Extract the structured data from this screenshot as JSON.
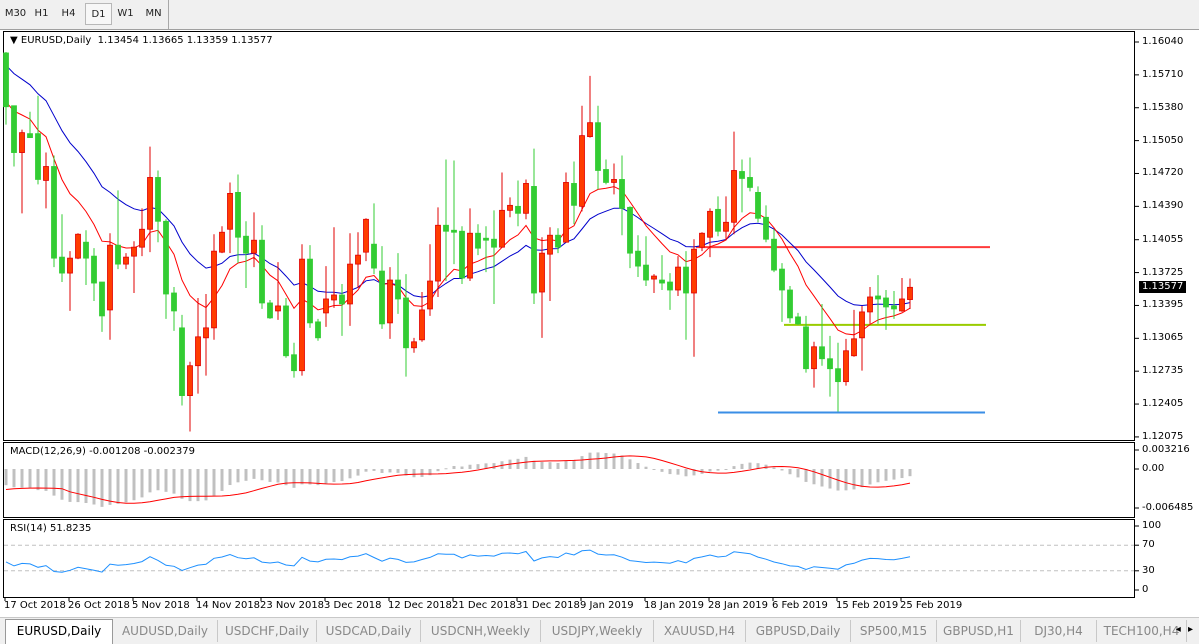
{
  "toolbar": {
    "timeframes": [
      "M30",
      "H1",
      "H4",
      "D1",
      "W1",
      "MN"
    ],
    "selected": "D1"
  },
  "chart": {
    "header_icon": "triangle-down-icon",
    "symbol": "EURUSD,Daily",
    "ohlc": "1.13454 1.13665 1.13359 1.13577",
    "current_price": "1.13577",
    "price_axis": [
      "1.16040",
      "1.15710",
      "1.15380",
      "1.15050",
      "1.14720",
      "1.14390",
      "1.14055",
      "1.13725",
      "1.13395",
      "1.13065",
      "1.12735",
      "1.12405",
      "1.12075"
    ]
  },
  "macd": {
    "label": "MACD(12,26,9) -0.001208 -0.002379",
    "axis": [
      "0.003216",
      "0.00",
      "-0.006485"
    ]
  },
  "rsi": {
    "label": "RSI(14) 51.8235",
    "axis": [
      "100",
      "70",
      "30",
      "0"
    ]
  },
  "dates": [
    "17 Oct 2018",
    "26 Oct 2018",
    "5 Nov 2018",
    "14 Nov 2018",
    "23 Nov 2018",
    "3 Dec 2018",
    "12 Dec 2018",
    "21 Dec 2018",
    "31 Dec 2018",
    "9 Jan 2019",
    "18 Jan 2019",
    "28 Jan 2019",
    "6 Feb 2019",
    "15 Feb 2019",
    "25 Feb 2019"
  ],
  "tabs": [
    "EURUSD,Daily",
    "AUDUSD,Daily",
    "USDCHF,Daily",
    "USDCAD,Daily",
    "USDCNH,Weekly",
    "USDJPY,Weekly",
    "XAUUSD,H4",
    "GBPUSD,Daily",
    "SP500,M15",
    "GBPUSD,H1",
    "DJ30,H4",
    "TECH100,H4"
  ],
  "active_tab": "EURUSD,Daily",
  "tab_scroll_arrows": "◂ ▸",
  "colors": {
    "up_candle": "#ff3c00",
    "up_border": "#e00000",
    "down_candle": "#33cc33",
    "ma_fast": "#ff0000",
    "ma_slow": "#0000cc",
    "macd_histogram": "#c0c0c0",
    "macd_signal": "#ff0000",
    "rsi_line": "#1e90ff",
    "level_lines": "#c0c0c0"
  },
  "chart_data": {
    "type": "candlestick",
    "candle_format": [
      "open",
      "high",
      "low",
      "close"
    ],
    "candles": [
      [
        1.1593,
        1.1594,
        1.1521,
        1.1539
      ],
      [
        1.154,
        1.154,
        1.1479,
        1.1493
      ],
      [
        1.1493,
        1.1516,
        1.1432,
        1.1513
      ],
      [
        1.1512,
        1.1534,
        1.1508,
        1.1508
      ],
      [
        1.1512,
        1.155,
        1.1461,
        1.1466
      ],
      [
        1.1465,
        1.1493,
        1.1437,
        1.1479
      ],
      [
        1.1479,
        1.149,
        1.1378,
        1.1387
      ],
      [
        1.1388,
        1.1431,
        1.1363,
        1.1372
      ],
      [
        1.1372,
        1.1394,
        1.1334,
        1.1387
      ],
      [
        1.1387,
        1.1412,
        1.1386,
        1.1411
      ],
      [
        1.1403,
        1.1415,
        1.136,
        1.1387
      ],
      [
        1.1389,
        1.1397,
        1.1344,
        1.1362
      ],
      [
        1.1363,
        1.1363,
        1.1313,
        1.1329
      ],
      [
        1.1335,
        1.1412,
        1.1305,
        1.14
      ],
      [
        1.14,
        1.1455,
        1.1376,
        1.1381
      ],
      [
        1.1381,
        1.1392,
        1.1376,
        1.1388
      ],
      [
        1.1389,
        1.1404,
        1.1352,
        1.1398
      ],
      [
        1.1398,
        1.1437,
        1.1389,
        1.1416
      ],
      [
        1.1416,
        1.1499,
        1.1393,
        1.1468
      ],
      [
        1.1468,
        1.1475,
        1.1403,
        1.1424
      ],
      [
        1.1424,
        1.1426,
        1.1326,
        1.1351
      ],
      [
        1.1352,
        1.1358,
        1.1314,
        1.1334
      ],
      [
        1.1317,
        1.133,
        1.1239,
        1.1249
      ],
      [
        1.1249,
        1.1283,
        1.1213,
        1.1279
      ],
      [
        1.1279,
        1.1347,
        1.1251,
        1.1308
      ],
      [
        1.1307,
        1.1351,
        1.1269,
        1.1317
      ],
      [
        1.1317,
        1.1411,
        1.1305,
        1.1394
      ],
      [
        1.1393,
        1.1419,
        1.1392,
        1.1413
      ],
      [
        1.1416,
        1.1463,
        1.1392,
        1.1452
      ],
      [
        1.1453,
        1.1471,
        1.1382,
        1.1408
      ],
      [
        1.1409,
        1.1424,
        1.1357,
        1.1392
      ],
      [
        1.1392,
        1.1433,
        1.1378,
        1.1405
      ],
      [
        1.1405,
        1.142,
        1.1336,
        1.1342
      ],
      [
        1.1342,
        1.1345,
        1.1326,
        1.1327
      ],
      [
        1.1334,
        1.1383,
        1.1325,
        1.1339
      ],
      [
        1.1339,
        1.1347,
        1.1287,
        1.1289
      ],
      [
        1.129,
        1.1302,
        1.1267,
        1.1274
      ],
      [
        1.1274,
        1.1401,
        1.1269,
        1.1386
      ],
      [
        1.1386,
        1.14,
        1.1317,
        1.1322
      ],
      [
        1.1323,
        1.1326,
        1.1304,
        1.1307
      ],
      [
        1.1332,
        1.1379,
        1.1318,
        1.1346
      ],
      [
        1.1345,
        1.1418,
        1.1337,
        1.135
      ],
      [
        1.135,
        1.1361,
        1.1309,
        1.1341
      ],
      [
        1.1341,
        1.1412,
        1.1319,
        1.1381
      ],
      [
        1.1381,
        1.1413,
        1.1357,
        1.139
      ],
      [
        1.1393,
        1.1427,
        1.1384,
        1.1426
      ],
      [
        1.1401,
        1.1442,
        1.1371,
        1.1377
      ],
      [
        1.1374,
        1.1399,
        1.1316,
        1.1321
      ],
      [
        1.1322,
        1.1378,
        1.1306,
        1.1365
      ],
      [
        1.1365,
        1.1392,
        1.1331,
        1.1346
      ],
      [
        1.1347,
        1.1371,
        1.1268,
        1.1297
      ],
      [
        1.1297,
        1.1307,
        1.1292,
        1.1303
      ],
      [
        1.1305,
        1.1353,
        1.1303,
        1.1335
      ],
      [
        1.1336,
        1.1401,
        1.1329,
        1.1364
      ],
      [
        1.1364,
        1.1438,
        1.1348,
        1.142
      ],
      [
        1.142,
        1.1486,
        1.1364,
        1.1414
      ],
      [
        1.1415,
        1.1485,
        1.1381,
        1.1413
      ],
      [
        1.1414,
        1.1419,
        1.1361,
        1.1367
      ],
      [
        1.1367,
        1.1437,
        1.1364,
        1.1412
      ],
      [
        1.1412,
        1.1421,
        1.139,
        1.1397
      ],
      [
        1.1407,
        1.1419,
        1.1373,
        1.1405
      ],
      [
        1.1406,
        1.1435,
        1.1341,
        1.1398
      ],
      [
        1.1398,
        1.1473,
        1.1398,
        1.1435
      ],
      [
        1.1435,
        1.1448,
        1.1428,
        1.144
      ],
      [
        1.1439,
        1.1465,
        1.1419,
        1.1432
      ],
      [
        1.1432,
        1.1466,
        1.1426,
        1.1462
      ],
      [
        1.1459,
        1.1497,
        1.1341,
        1.1352
      ],
      [
        1.1353,
        1.1408,
        1.1307,
        1.1392
      ],
      [
        1.1391,
        1.1418,
        1.1344,
        1.141
      ],
      [
        1.141,
        1.1417,
        1.1392,
        1.1398
      ],
      [
        1.1403,
        1.1473,
        1.1403,
        1.1463
      ],
      [
        1.1462,
        1.1484,
        1.1421,
        1.144
      ],
      [
        1.1439,
        1.154,
        1.1434,
        1.151
      ],
      [
        1.1509,
        1.157,
        1.1508,
        1.1523
      ],
      [
        1.1523,
        1.154,
        1.1456,
        1.1475
      ],
      [
        1.1476,
        1.1486,
        1.1461,
        1.1463
      ],
      [
        1.1463,
        1.1482,
        1.1451,
        1.1466
      ],
      [
        1.1466,
        1.149,
        1.141,
        1.1437
      ],
      [
        1.1438,
        1.1439,
        1.1377,
        1.1392
      ],
      [
        1.1394,
        1.141,
        1.1368,
        1.1379
      ],
      [
        1.138,
        1.1409,
        1.1359,
        1.1365
      ],
      [
        1.1366,
        1.1371,
        1.1352,
        1.1369
      ],
      [
        1.1365,
        1.139,
        1.1355,
        1.1362
      ],
      [
        1.1363,
        1.1372,
        1.1335,
        1.1355
      ],
      [
        1.1355,
        1.1389,
        1.1349,
        1.1378
      ],
      [
        1.1378,
        1.1394,
        1.1305,
        1.1352
      ],
      [
        1.1352,
        1.1406,
        1.1288,
        1.1396
      ],
      [
        1.1398,
        1.1413,
        1.1394,
        1.1412
      ],
      [
        1.1408,
        1.1437,
        1.1388,
        1.1434
      ],
      [
        1.1436,
        1.1449,
        1.1409,
        1.1414
      ],
      [
        1.1414,
        1.1449,
        1.1405,
        1.1423
      ],
      [
        1.1423,
        1.1514,
        1.1411,
        1.1475
      ],
      [
        1.1474,
        1.1486,
        1.1433,
        1.1467
      ],
      [
        1.1468,
        1.1488,
        1.1454,
        1.1458
      ],
      [
        1.1453,
        1.1459,
        1.1423,
        1.1427
      ],
      [
        1.1428,
        1.144,
        1.1403,
        1.1406
      ],
      [
        1.1406,
        1.1416,
        1.1373,
        1.1375
      ],
      [
        1.1376,
        1.1382,
        1.1323,
        1.1355
      ],
      [
        1.1355,
        1.1359,
        1.1322,
        1.1327
      ],
      [
        1.1328,
        1.1332,
        1.132,
        1.1321
      ],
      [
        1.1318,
        1.1329,
        1.1272,
        1.1276
      ],
      [
        1.1276,
        1.1303,
        1.1257,
        1.1298
      ],
      [
        1.1298,
        1.1341,
        1.1279,
        1.1286
      ],
      [
        1.1286,
        1.1309,
        1.1248,
        1.1276
      ],
      [
        1.1276,
        1.1302,
        1.1233,
        1.1263
      ],
      [
        1.1263,
        1.1306,
        1.1259,
        1.1294
      ],
      [
        1.1289,
        1.1335,
        1.1288,
        1.1306
      ],
      [
        1.1307,
        1.1339,
        1.1274,
        1.1333
      ],
      [
        1.1333,
        1.1358,
        1.1321,
        1.1348
      ],
      [
        1.1349,
        1.137,
        1.1321,
        1.1346
      ],
      [
        1.1347,
        1.1355,
        1.1315,
        1.1338
      ],
      [
        1.1339,
        1.1354,
        1.1326,
        1.1336
      ],
      [
        1.1334,
        1.1367,
        1.1333,
        1.1346
      ],
      [
        1.13454,
        1.13665,
        1.13359,
        1.13577
      ]
    ],
    "horizontal_lines": [
      {
        "price": 1.1398,
        "color": "#ff3b3b"
      },
      {
        "price": 1.132,
        "color": "#99cc00"
      },
      {
        "price": 1.1232,
        "color": "#3a8ee6"
      }
    ],
    "y_range": [
      1.12075,
      1.1604
    ],
    "rsi_levels": [
      70,
      30
    ]
  }
}
